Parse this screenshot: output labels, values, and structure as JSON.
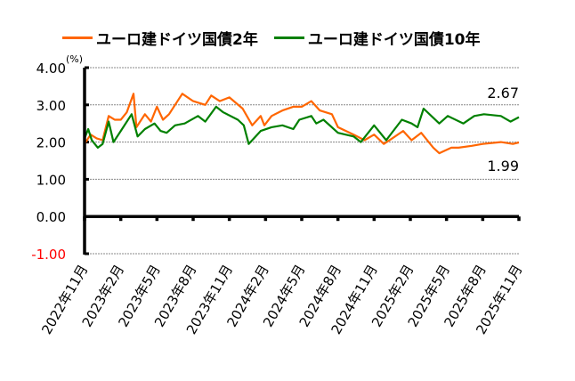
{
  "chart_data": {
    "type": "line",
    "title": "",
    "unit_label": "(%)",
    "xlabel": "",
    "ylabel": "",
    "x_unit": "months since 2022-11",
    "ylim": [
      -1.0,
      4.0
    ],
    "yticks": [
      4.0,
      3.0,
      2.0,
      1.0,
      0.0,
      -1.0
    ],
    "ytick_labels": [
      "4.00",
      "3.00",
      "2.00",
      "1.00",
      "0.00",
      "-1.00"
    ],
    "ytick_colors": [
      "#000000",
      "#000000",
      "#000000",
      "#000000",
      "#000000",
      "#FF0000"
    ],
    "xlim": [
      0,
      36
    ],
    "xticks": [
      0,
      3,
      6,
      9,
      12,
      15,
      18,
      21,
      24,
      27,
      30,
      33,
      36
    ],
    "xtick_labels": [
      "2022年11月",
      "2023年2月",
      "2023年5月",
      "2023年8月",
      "2023年11月",
      "2024年2月",
      "2024年5月",
      "2024年8月",
      "2024年11月",
      "2025年2月",
      "2025年5月",
      "2025年8月",
      "2025年11月"
    ],
    "grid": true,
    "legend_position": "top",
    "series": [
      {
        "name": "ユーロ建ドイツ国債2年",
        "color": "#FF6600",
        "x": [
          0,
          0.5,
          1,
          1.5,
          2,
          2.5,
          3,
          3.5,
          4.06,
          4.3,
          5,
          5.5,
          6,
          6.5,
          7,
          7.5,
          8.1,
          9,
          10,
          10.5,
          11.2,
          12,
          13.1,
          13.9,
          14.6,
          14.9,
          15.5,
          16.4,
          17.3,
          18,
          18.8,
          19.5,
          20.5,
          21,
          22.3,
          23.2,
          24,
          24.8,
          25.5,
          26.4,
          27.1,
          27.9,
          28.9,
          29.4,
          30.4,
          31,
          32.1,
          33,
          34.5,
          35.5,
          36
        ],
        "values": [
          1.95,
          2.2,
          2.1,
          2.05,
          2.7,
          2.6,
          2.6,
          2.8,
          3.3,
          2.4,
          2.75,
          2.55,
          2.95,
          2.6,
          2.75,
          3.0,
          3.3,
          3.1,
          3.0,
          3.25,
          3.1,
          3.2,
          2.9,
          2.45,
          2.7,
          2.45,
          2.7,
          2.85,
          2.95,
          2.95,
          3.1,
          2.85,
          2.75,
          2.4,
          2.2,
          2.05,
          2.2,
          1.95,
          2.1,
          2.3,
          2.05,
          2.25,
          1.85,
          1.7,
          1.85,
          1.85,
          1.9,
          1.95,
          2.0,
          1.95,
          1.99
        ]
      },
      {
        "name": "ユーロ建ドイツ国債10年",
        "color": "#008000",
        "x": [
          0,
          0.3,
          0.6,
          1.1,
          1.5,
          2,
          2.4,
          3,
          3.9,
          4.4,
          5,
          5.8,
          6.3,
          6.8,
          7.5,
          8.3,
          9.4,
          10,
          10.9,
          11.5,
          12.7,
          13.2,
          13.6,
          14.6,
          15.5,
          16.4,
          17.3,
          17.8,
          18.8,
          19.2,
          19.8,
          21,
          22.3,
          22.9,
          24,
          25,
          26.3,
          27.1,
          27.6,
          28.1,
          29.4,
          30.1,
          31.4,
          32.3,
          33.1,
          34.5,
          35.3,
          36
        ],
        "values": [
          2.1,
          2.35,
          2.05,
          1.85,
          1.95,
          2.55,
          2.0,
          2.3,
          2.75,
          2.15,
          2.35,
          2.5,
          2.3,
          2.25,
          2.45,
          2.5,
          2.7,
          2.55,
          2.95,
          2.8,
          2.6,
          2.45,
          1.95,
          2.3,
          2.4,
          2.45,
          2.35,
          2.6,
          2.7,
          2.5,
          2.6,
          2.25,
          2.15,
          2.0,
          2.45,
          2.05,
          2.6,
          2.5,
          2.4,
          2.9,
          2.5,
          2.7,
          2.5,
          2.7,
          2.75,
          2.7,
          2.55,
          2.67
        ]
      }
    ],
    "annotations": [
      {
        "text": "2.67",
        "series": "ユーロ建ドイツ国債10年"
      },
      {
        "text": "1.99",
        "series": "ユーロ建ドイツ国債2年"
      }
    ]
  }
}
